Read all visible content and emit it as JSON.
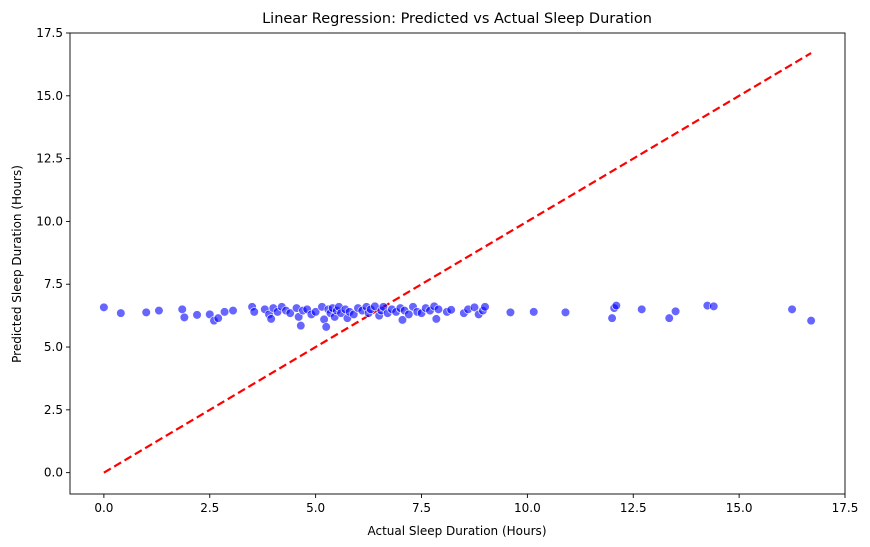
{
  "chart_data": {
    "type": "scatter",
    "title": "Linear Regression: Predicted vs Actual Sleep Duration",
    "xlabel": "Actual Sleep Duration (Hours)",
    "ylabel": "Predicted Sleep Duration (Hours)",
    "xlim": [
      -0.8,
      17.5
    ],
    "ylim": [
      -0.85,
      17.5
    ],
    "xticks": [
      0.0,
      2.5,
      5.0,
      7.5,
      10.0,
      12.5,
      15.0,
      17.5
    ],
    "yticks": [
      0.0,
      2.5,
      5.0,
      7.5,
      10.0,
      12.5,
      15.0,
      17.5
    ],
    "xtick_labels": [
      "0.0",
      "2.5",
      "5.0",
      "7.5",
      "10.0",
      "12.5",
      "15.0",
      "17.5"
    ],
    "ytick_labels": [
      "0.0",
      "2.5",
      "5.0",
      "7.5",
      "10.0",
      "12.5",
      "15.0",
      "17.5"
    ],
    "grid": false,
    "point_color": "#0000ff",
    "line_color": "#ff0000",
    "reference_line": {
      "x": [
        0.0,
        16.7
      ],
      "y": [
        0.0,
        16.7
      ],
      "style": "dashed"
    },
    "points": [
      [
        0.0,
        6.58
      ],
      [
        0.4,
        6.35
      ],
      [
        1.0,
        6.38
      ],
      [
        1.3,
        6.45
      ],
      [
        1.85,
        6.5
      ],
      [
        1.9,
        6.18
      ],
      [
        2.2,
        6.28
      ],
      [
        2.5,
        6.3
      ],
      [
        2.6,
        6.05
      ],
      [
        2.7,
        6.15
      ],
      [
        2.85,
        6.4
      ],
      [
        3.05,
        6.45
      ],
      [
        3.5,
        6.6
      ],
      [
        3.55,
        6.4
      ],
      [
        3.8,
        6.5
      ],
      [
        3.9,
        6.3
      ],
      [
        3.95,
        6.12
      ],
      [
        4.0,
        6.55
      ],
      [
        4.1,
        6.4
      ],
      [
        4.2,
        6.6
      ],
      [
        4.3,
        6.45
      ],
      [
        4.4,
        6.35
      ],
      [
        4.55,
        6.55
      ],
      [
        4.6,
        6.2
      ],
      [
        4.65,
        5.85
      ],
      [
        4.7,
        6.45
      ],
      [
        4.8,
        6.5
      ],
      [
        4.9,
        6.3
      ],
      [
        5.0,
        6.4
      ],
      [
        5.15,
        6.6
      ],
      [
        5.2,
        6.1
      ],
      [
        5.25,
        5.8
      ],
      [
        5.3,
        6.5
      ],
      [
        5.35,
        6.35
      ],
      [
        5.4,
        6.55
      ],
      [
        5.45,
        6.2
      ],
      [
        5.5,
        6.45
      ],
      [
        5.55,
        6.6
      ],
      [
        5.6,
        6.35
      ],
      [
        5.7,
        6.5
      ],
      [
        5.75,
        6.15
      ],
      [
        5.8,
        6.4
      ],
      [
        5.9,
        6.3
      ],
      [
        6.0,
        6.55
      ],
      [
        6.1,
        6.45
      ],
      [
        6.2,
        6.6
      ],
      [
        6.25,
        6.35
      ],
      [
        6.3,
        6.5
      ],
      [
        6.4,
        6.62
      ],
      [
        6.5,
        6.25
      ],
      [
        6.55,
        6.45
      ],
      [
        6.6,
        6.6
      ],
      [
        6.7,
        6.35
      ],
      [
        6.8,
        6.5
      ],
      [
        6.9,
        6.4
      ],
      [
        7.0,
        6.55
      ],
      [
        7.05,
        6.08
      ],
      [
        7.1,
        6.45
      ],
      [
        7.2,
        6.3
      ],
      [
        7.3,
        6.6
      ],
      [
        7.4,
        6.4
      ],
      [
        7.5,
        6.35
      ],
      [
        7.6,
        6.55
      ],
      [
        7.7,
        6.45
      ],
      [
        7.8,
        6.62
      ],
      [
        7.85,
        6.12
      ],
      [
        7.9,
        6.5
      ],
      [
        8.1,
        6.4
      ],
      [
        8.2,
        6.48
      ],
      [
        8.5,
        6.35
      ],
      [
        8.6,
        6.5
      ],
      [
        8.75,
        6.58
      ],
      [
        8.85,
        6.3
      ],
      [
        8.95,
        6.45
      ],
      [
        9.0,
        6.6
      ],
      [
        9.6,
        6.38
      ],
      [
        10.15,
        6.4
      ],
      [
        10.9,
        6.38
      ],
      [
        12.0,
        6.15
      ],
      [
        12.05,
        6.55
      ],
      [
        12.1,
        6.65
      ],
      [
        12.7,
        6.5
      ],
      [
        13.35,
        6.15
      ],
      [
        13.5,
        6.42
      ],
      [
        14.25,
        6.65
      ],
      [
        14.4,
        6.62
      ],
      [
        16.25,
        6.5
      ],
      [
        16.7,
        6.05
      ]
    ]
  }
}
